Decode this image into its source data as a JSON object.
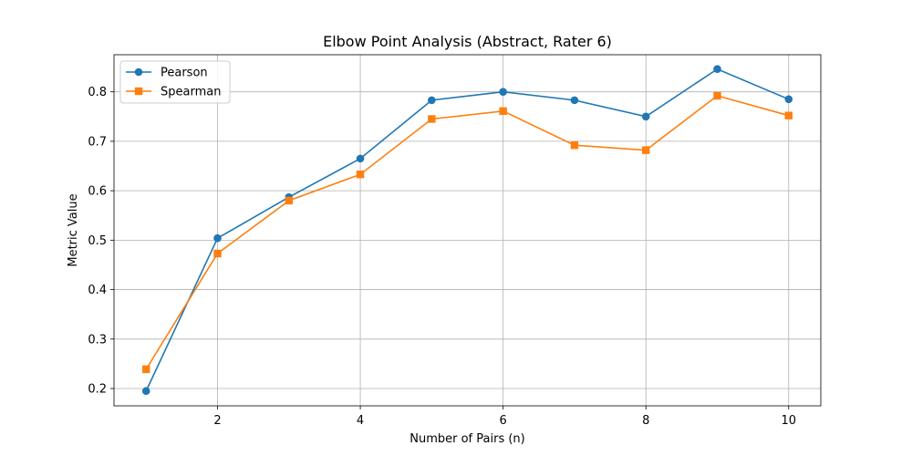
{
  "chart_data": {
    "type": "line",
    "title": "Elbow Point Analysis (Abstract, Rater 6)",
    "xlabel": "Number of Pairs (n)",
    "ylabel": "Metric Value",
    "x": [
      1,
      2,
      3,
      4,
      5,
      6,
      7,
      8,
      9,
      10
    ],
    "xlim": [
      0.55,
      10.45
    ],
    "ylim": [
      0.165,
      0.875
    ],
    "xticks": [
      2,
      4,
      6,
      8,
      10
    ],
    "xtick_labels": [
      "2",
      "4",
      "6",
      "8",
      "10"
    ],
    "yticks": [
      0.2,
      0.3,
      0.4,
      0.5,
      0.6,
      0.7,
      0.8
    ],
    "ytick_labels": [
      "0.2",
      "0.3",
      "0.4",
      "0.5",
      "0.6",
      "0.7",
      "0.8"
    ],
    "grid": true,
    "legend_position": "top-left",
    "series": [
      {
        "name": "Pearson",
        "color": "#1f77b4",
        "marker": "circle",
        "values": [
          0.195,
          0.504,
          0.587,
          0.665,
          0.783,
          0.8,
          0.783,
          0.75,
          0.846,
          0.785
        ]
      },
      {
        "name": "Spearman",
        "color": "#ff7f0e",
        "marker": "square",
        "values": [
          0.239,
          0.473,
          0.58,
          0.633,
          0.745,
          0.761,
          0.692,
          0.682,
          0.792,
          0.752
        ]
      }
    ]
  }
}
